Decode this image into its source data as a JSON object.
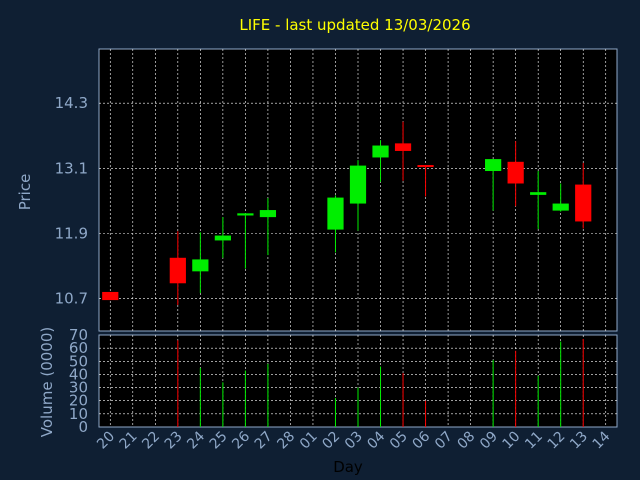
{
  "colors": {
    "background": "#0f1f33",
    "plot_background": "#000000",
    "title": "#ffff00",
    "axis_text": "#8fa8c8",
    "axis_label_day": "#000000",
    "grid": "#ffffff",
    "up": "#00ee00",
    "down": "#ff0000"
  },
  "chart_data": [
    {
      "type": "candlestick",
      "title": "LIFE - last updated 13/03/2026",
      "ylabel": "Price",
      "xlabel": "",
      "ylim": [
        10.1,
        15.3
      ],
      "y_ticks": [
        10.7,
        11.9,
        13.1,
        14.3
      ],
      "y_tick_labels": [
        "10.7",
        "11.9",
        "13.1",
        "14.3"
      ],
      "grid": true,
      "categories": [
        "20",
        "21",
        "22",
        "23",
        "24",
        "25",
        "26",
        "27",
        "28",
        "01",
        "02",
        "03",
        "04",
        "05",
        "06",
        "07",
        "08",
        "09",
        "10",
        "11",
        "12",
        "13",
        "14"
      ],
      "candles": [
        {
          "x": "20",
          "open": 10.82,
          "close": 10.67,
          "high": 10.82,
          "low": 10.67
        },
        {
          "x": "23",
          "open": 11.45,
          "close": 10.98,
          "high": 11.94,
          "low": 10.58
        },
        {
          "x": "24",
          "open": 11.2,
          "close": 11.42,
          "high": 11.92,
          "low": 10.8
        },
        {
          "x": "25",
          "open": 11.77,
          "close": 11.86,
          "high": 12.2,
          "low": 11.45
        },
        {
          "x": "26",
          "open": 12.23,
          "close": 12.27,
          "high": 12.27,
          "low": 11.25
        },
        {
          "x": "27",
          "open": 12.2,
          "close": 12.33,
          "high": 12.55,
          "low": 11.5
        },
        {
          "x": "02",
          "open": 11.97,
          "close": 12.56,
          "high": 12.6,
          "low": 11.55
        },
        {
          "x": "03",
          "open": 12.45,
          "close": 13.15,
          "high": 13.25,
          "low": 11.95
        },
        {
          "x": "04",
          "open": 13.3,
          "close": 13.52,
          "high": 13.62,
          "low": 12.85
        },
        {
          "x": "05",
          "open": 13.56,
          "close": 13.42,
          "high": 13.96,
          "low": 12.87
        },
        {
          "x": "06",
          "open": 13.16,
          "close": 13.14,
          "high": 13.16,
          "low": 12.58
        },
        {
          "x": "09",
          "open": 13.05,
          "close": 13.27,
          "high": 13.27,
          "low": 12.32
        },
        {
          "x": "10",
          "open": 13.22,
          "close": 12.82,
          "high": 13.6,
          "low": 12.4
        },
        {
          "x": "11",
          "open": 12.61,
          "close": 12.66,
          "high": 13.05,
          "low": 11.98
        },
        {
          "x": "12",
          "open": 12.32,
          "close": 12.45,
          "high": 12.82,
          "low": 12.3
        },
        {
          "x": "13",
          "open": 12.8,
          "close": 12.12,
          "high": 13.2,
          "low": 11.99
        }
      ]
    },
    {
      "type": "bar",
      "ylabel": "Volume (0000)",
      "xlabel": "Day",
      "ylim": [
        0,
        70
      ],
      "y_ticks": [
        0,
        10,
        20,
        30,
        40,
        50,
        60,
        70
      ],
      "y_tick_labels": [
        "0",
        "10",
        "20",
        "30",
        "40",
        "50",
        "60",
        "70"
      ],
      "grid": true,
      "categories": [
        "20",
        "21",
        "22",
        "23",
        "24",
        "25",
        "26",
        "27",
        "28",
        "01",
        "02",
        "03",
        "04",
        "05",
        "06",
        "07",
        "08",
        "09",
        "10",
        "11",
        "12",
        "13",
        "14"
      ],
      "values": [
        {
          "x": "23",
          "volume": 66,
          "direction": "down"
        },
        {
          "x": "24",
          "volume": 45,
          "direction": "up"
        },
        {
          "x": "25",
          "volume": 34,
          "direction": "up"
        },
        {
          "x": "26",
          "volume": 43,
          "direction": "up"
        },
        {
          "x": "27",
          "volume": 48,
          "direction": "up"
        },
        {
          "x": "02",
          "volume": 22,
          "direction": "up"
        },
        {
          "x": "03",
          "volume": 30,
          "direction": "up"
        },
        {
          "x": "04",
          "volume": 46,
          "direction": "up"
        },
        {
          "x": "05",
          "volume": 41,
          "direction": "down"
        },
        {
          "x": "06",
          "volume": 20,
          "direction": "down"
        },
        {
          "x": "09",
          "volume": 51,
          "direction": "up"
        },
        {
          "x": "10",
          "volume": 58,
          "direction": "down"
        },
        {
          "x": "11",
          "volume": 39,
          "direction": "up"
        },
        {
          "x": "12",
          "volume": 65,
          "direction": "up"
        },
        {
          "x": "13",
          "volume": 67,
          "direction": "down"
        }
      ]
    }
  ]
}
